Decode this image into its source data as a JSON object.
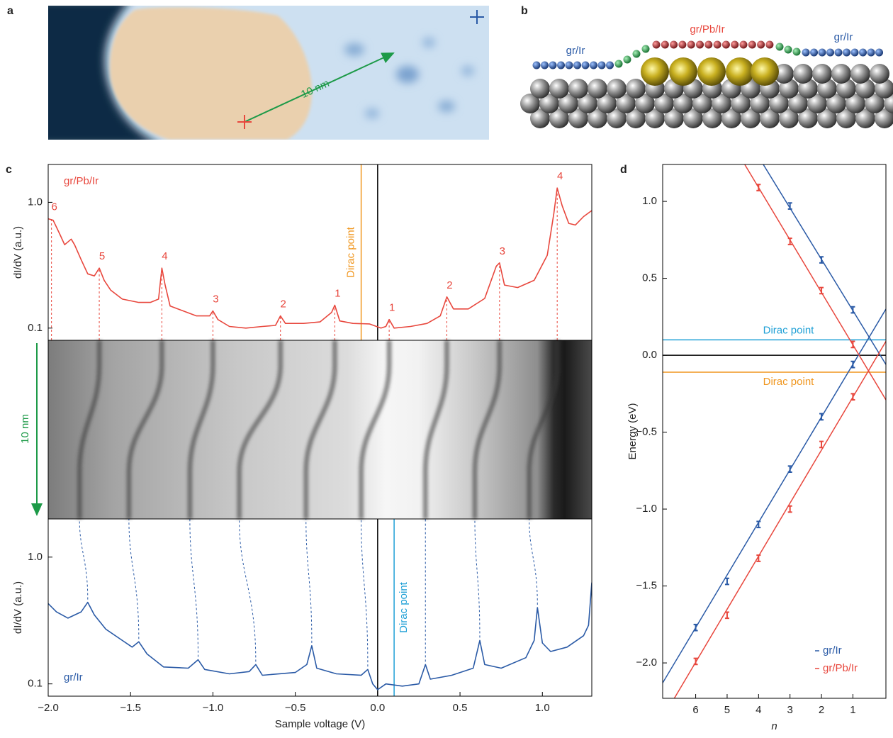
{
  "stm_image": {
    "panel": "a",
    "scale_label": "10 nm"
  },
  "atom_diagram": {
    "panel": "b",
    "labels": [
      "gr/Ir",
      "gr/Pb/Ir",
      "gr/Ir"
    ]
  },
  "ldos_map": {
    "scale_label": "10 nm"
  },
  "chart_data": [
    {
      "type": "line",
      "panel": "c",
      "y_label": "dI/dV (a.u.)",
      "y_scale": "log",
      "xlim": [
        -2.0,
        1.3
      ],
      "ylim": [
        0.08,
        2.0
      ],
      "yticks": [
        0.1,
        {
          "value": 1,
          "label": "1.0"
        }
      ],
      "legend": "upper left",
      "series": [
        {
          "name": "gr/Pb/Ir",
          "color": "#e8473d",
          "x": [
            -2.0,
            -1.97,
            -1.93,
            -1.9,
            -1.86,
            -1.84,
            -1.8,
            -1.76,
            -1.72,
            -1.69,
            -1.66,
            -1.62,
            -1.55,
            -1.45,
            -1.38,
            -1.33,
            -1.31,
            -1.29,
            -1.26,
            -1.2,
            -1.1,
            -1.02,
            -1.0,
            -0.97,
            -0.9,
            -0.8,
            -0.7,
            -0.62,
            -0.59,
            -0.56,
            -0.45,
            -0.35,
            -0.28,
            -0.26,
            -0.23,
            -0.15,
            -0.05,
            0.02,
            0.05,
            0.07,
            0.1,
            0.2,
            0.3,
            0.38,
            0.42,
            0.46,
            0.55,
            0.65,
            0.72,
            0.74,
            0.77,
            0.85,
            0.95,
            1.03,
            1.07,
            1.09,
            1.12,
            1.16,
            1.2,
            1.25,
            1.3
          ],
          "values": [
            0.74,
            0.72,
            0.56,
            0.46,
            0.51,
            0.46,
            0.35,
            0.27,
            0.26,
            0.3,
            0.24,
            0.2,
            0.17,
            0.16,
            0.16,
            0.17,
            0.3,
            0.22,
            0.15,
            0.14,
            0.125,
            0.125,
            0.137,
            0.117,
            0.103,
            0.1,
            0.103,
            0.105,
            0.125,
            0.109,
            0.109,
            0.112,
            0.133,
            0.152,
            0.114,
            0.109,
            0.108,
            0.1,
            0.103,
            0.117,
            0.1,
            0.103,
            0.109,
            0.125,
            0.177,
            0.142,
            0.142,
            0.172,
            0.31,
            0.33,
            0.22,
            0.21,
            0.24,
            0.38,
            0.82,
            1.3,
            0.94,
            0.68,
            0.66,
            0.77,
            0.86
          ]
        }
      ],
      "peaks": [
        {
          "x": -1.98,
          "y": 0.74,
          "label": "6"
        },
        {
          "x": -1.69,
          "y": 0.3,
          "label": "5"
        },
        {
          "x": -1.31,
          "y": 0.3,
          "label": "4"
        },
        {
          "x": -1.0,
          "y": 0.137,
          "label": "3"
        },
        {
          "x": -0.59,
          "y": 0.125,
          "label": "2"
        },
        {
          "x": -0.26,
          "y": 0.152,
          "label": "1"
        },
        {
          "x": 0.07,
          "y": 0.117,
          "label": "1"
        },
        {
          "x": 0.42,
          "y": 0.177,
          "label": "2"
        },
        {
          "x": 0.74,
          "y": 0.33,
          "label": "3"
        },
        {
          "x": 1.09,
          "y": 1.3,
          "label": "4"
        }
      ],
      "vlines": [
        {
          "x": 0,
          "color": "#000000"
        },
        {
          "x": -0.1,
          "color": "#f0961e",
          "label": "Dirac point"
        }
      ]
    },
    {
      "type": "line",
      "y_label": "dI/dV (a.u.)",
      "x_label": "Sample voltage (V)",
      "y_scale": "log",
      "xlim": [
        -2.0,
        1.3
      ],
      "ylim": [
        0.08,
        2.0
      ],
      "yticks": [
        0.1,
        {
          "value": 1,
          "label": "1.0"
        }
      ],
      "xticks": [
        {
          "value": -2,
          "label": "−2.0"
        },
        {
          "value": -1.5,
          "label": "−1.5"
        },
        {
          "value": -1,
          "label": "−1.0"
        },
        {
          "value": -0.5,
          "label": "−0.5"
        },
        {
          "value": 0,
          "label": "0.0"
        },
        0.5,
        {
          "value": 1,
          "label": "1.0"
        }
      ],
      "legend": "lower left",
      "series": [
        {
          "name": "gr/Ir",
          "color": "#2a5aa6",
          "x": [
            -2.0,
            -1.95,
            -1.88,
            -1.8,
            -1.76,
            -1.72,
            -1.65,
            -1.55,
            -1.49,
            -1.45,
            -1.4,
            -1.3,
            -1.15,
            -1.09,
            -1.05,
            -0.9,
            -0.78,
            -0.74,
            -0.7,
            -0.5,
            -0.43,
            -0.4,
            -0.37,
            -0.25,
            -0.1,
            -0.06,
            -0.03,
            0.0,
            0.05,
            0.15,
            0.25,
            0.29,
            0.32,
            0.45,
            0.58,
            0.62,
            0.65,
            0.75,
            0.9,
            0.95,
            0.97,
            1.0,
            1.05,
            1.15,
            1.25,
            1.28,
            1.3
          ],
          "values": [
            0.43,
            0.37,
            0.33,
            0.37,
            0.44,
            0.35,
            0.27,
            0.22,
            0.195,
            0.215,
            0.172,
            0.136,
            0.133,
            0.155,
            0.13,
            0.12,
            0.125,
            0.142,
            0.117,
            0.123,
            0.142,
            0.2,
            0.133,
            0.12,
            0.117,
            0.13,
            0.1,
            0.09,
            0.1,
            0.096,
            0.1,
            0.142,
            0.109,
            0.117,
            0.133,
            0.22,
            0.142,
            0.133,
            0.161,
            0.22,
            0.4,
            0.21,
            0.18,
            0.195,
            0.24,
            0.29,
            0.63
          ]
        }
      ],
      "peak_guides": [
        {
          "x": -1.76,
          "y": 0.44,
          "top_x": -1.81
        },
        {
          "x": -1.45,
          "y": 0.215,
          "top_x": -1.51
        },
        {
          "x": -1.09,
          "y": 0.155,
          "top_x": -1.14
        },
        {
          "x": -0.74,
          "y": 0.142,
          "top_x": -0.84
        },
        {
          "x": -0.4,
          "y": 0.2,
          "top_x": -0.435
        },
        {
          "x": -0.06,
          "y": 0.13,
          "top_x": -0.1
        },
        {
          "x": 0.29,
          "y": 0.142,
          "top_x": 0.29
        },
        {
          "x": 0.62,
          "y": 0.22,
          "top_x": 0.59
        },
        {
          "x": 0.97,
          "y": 0.4,
          "top_x": 0.92
        }
      ],
      "vlines": [
        {
          "x": 0,
          "color": "#000000"
        },
        {
          "x": 0.1,
          "color": "#1fa0d6",
          "label": "Dirac point"
        }
      ]
    },
    {
      "type": "scatter",
      "panel": "d",
      "x_label": "n",
      "y_label": "Energy (eV)",
      "xlim": [
        7.05,
        -0.05
      ],
      "ylim": [
        -2.23,
        1.24
      ],
      "xticks": [
        6,
        5,
        4,
        3,
        2,
        1
      ],
      "yticks": [
        {
          "value": -2,
          "label": "−2.0"
        },
        {
          "value": -1.5,
          "label": "−1.5"
        },
        {
          "value": -1,
          "label": "−1.0"
        },
        {
          "value": -0.5,
          "label": "−0.5"
        },
        {
          "value": 0,
          "label": "0.0"
        },
        0.5,
        {
          "value": 1,
          "label": "1.0"
        }
      ],
      "legend": "lower right",
      "series": [
        {
          "name": "gr/Ir",
          "color": "#2a5aa6",
          "x": [
            3,
            2,
            1,
            1,
            2,
            3,
            4,
            5,
            6
          ],
          "values": [
            0.97,
            0.62,
            0.295,
            -0.06,
            -0.4,
            -0.74,
            -1.1,
            -1.47,
            -1.77
          ],
          "errors": [
            0.02,
            0.02,
            0.02,
            0.02,
            0.02,
            0.02,
            0.02,
            0.02,
            0.02
          ]
        },
        {
          "name": "gr/Pb/Ir",
          "color": "#e8473d",
          "x": [
            4,
            3,
            2,
            1,
            1,
            2,
            3,
            4,
            5,
            6
          ],
          "values": [
            1.09,
            0.74,
            0.42,
            0.07,
            -0.27,
            -0.58,
            -1.0,
            -1.32,
            -1.69,
            -1.99
          ],
          "errors": [
            0.02,
            0.02,
            0.02,
            0.02,
            0.02,
            0.02,
            0.02,
            0.02,
            0.02,
            0.02
          ]
        }
      ],
      "fits": [
        {
          "color": "#2a5aa6",
          "x": [
            3.85,
            -0.05
          ],
          "values": [
            1.24,
            -0.06
          ]
        },
        {
          "color": "#2a5aa6",
          "x": [
            7.05,
            -0.05
          ],
          "values": [
            -2.13,
            0.3
          ]
        },
        {
          "color": "#e8473d",
          "x": [
            4.44,
            -0.05
          ],
          "values": [
            1.24,
            -0.29
          ]
        },
        {
          "color": "#e8473d",
          "x": [
            6.68,
            -0.05
          ],
          "values": [
            -2.23,
            0.09
          ]
        }
      ],
      "hlines": [
        {
          "y": 0.1,
          "color": "#1fa0d6",
          "label": "Dirac point"
        },
        {
          "y": 0,
          "color": "#000000"
        },
        {
          "y": -0.11,
          "color": "#f0961e",
          "label": "Dirac point"
        }
      ]
    }
  ]
}
